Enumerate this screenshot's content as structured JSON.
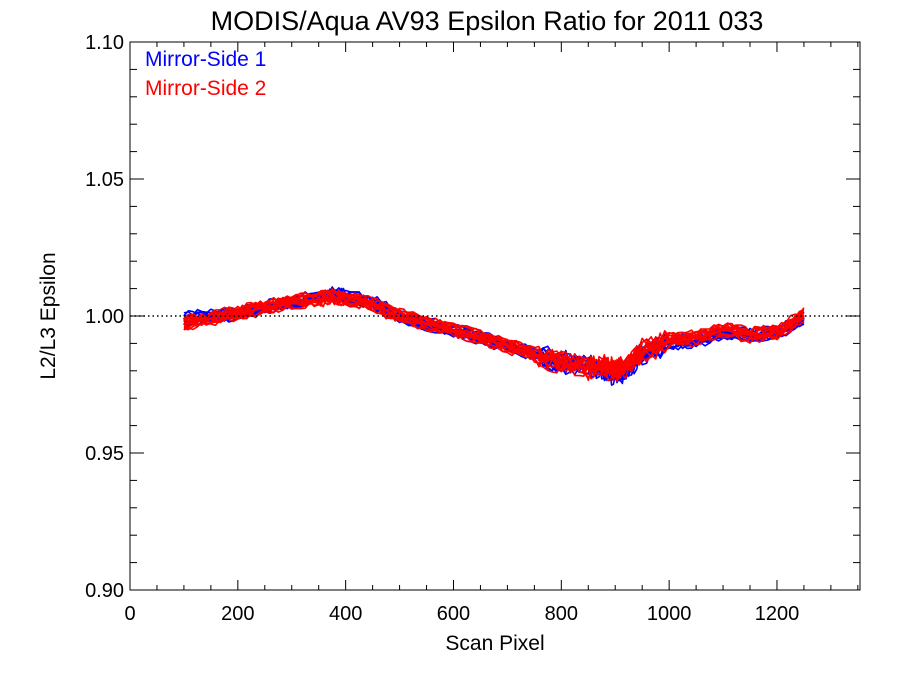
{
  "chart_data": {
    "type": "line",
    "title": "MODIS/Aqua AV93 Epsilon Ratio for 2011 033",
    "xlabel": "Scan Pixel",
    "ylabel": "L2/L3 Epsilon",
    "xlim": [
      0,
      1354
    ],
    "ylim": [
      0.9,
      1.1
    ],
    "xticks": [
      0,
      200,
      400,
      600,
      800,
      1000,
      1200
    ],
    "xtick_labels": [
      "0",
      "200",
      "400",
      "600",
      "800",
      "1000",
      "1200"
    ],
    "xminor_step": 50,
    "yticks": [
      0.9,
      0.95,
      1.0,
      1.05,
      1.1
    ],
    "ytick_labels": [
      "0.90",
      "0.95",
      "1.00",
      "1.05",
      "1.10"
    ],
    "yminor_step": 0.01,
    "reference_line": {
      "y": 1.0,
      "style": "dotted"
    },
    "grid": false,
    "legend_position": "top-left",
    "x": [
      100,
      150,
      200,
      250,
      300,
      350,
      375,
      400,
      450,
      500,
      550,
      600,
      650,
      700,
      750,
      800,
      850,
      880,
      900,
      920,
      950,
      1000,
      1050,
      1100,
      1150,
      1200,
      1250
    ],
    "series": [
      {
        "name": "Mirror-Side 1",
        "color": "#0000ff",
        "values": [
          0.999,
          1.0,
          1.001,
          1.003,
          1.005,
          1.007,
          1.008,
          1.007,
          1.005,
          1.0,
          0.997,
          0.995,
          0.992,
          0.989,
          0.986,
          0.983,
          0.982,
          0.98,
          0.979,
          0.98,
          0.986,
          0.99,
          0.991,
          0.994,
          0.993,
          0.994,
          0.999
        ]
      },
      {
        "name": "Mirror-Side 2",
        "color": "#ff0000",
        "values": [
          0.997,
          0.999,
          1.001,
          1.003,
          1.005,
          1.006,
          1.007,
          1.006,
          1.004,
          1.0,
          0.997,
          0.995,
          0.992,
          0.989,
          0.986,
          0.983,
          0.981,
          0.981,
          0.98,
          0.981,
          0.987,
          0.991,
          0.992,
          0.995,
          0.993,
          0.994,
          1.0
        ]
      }
    ]
  }
}
